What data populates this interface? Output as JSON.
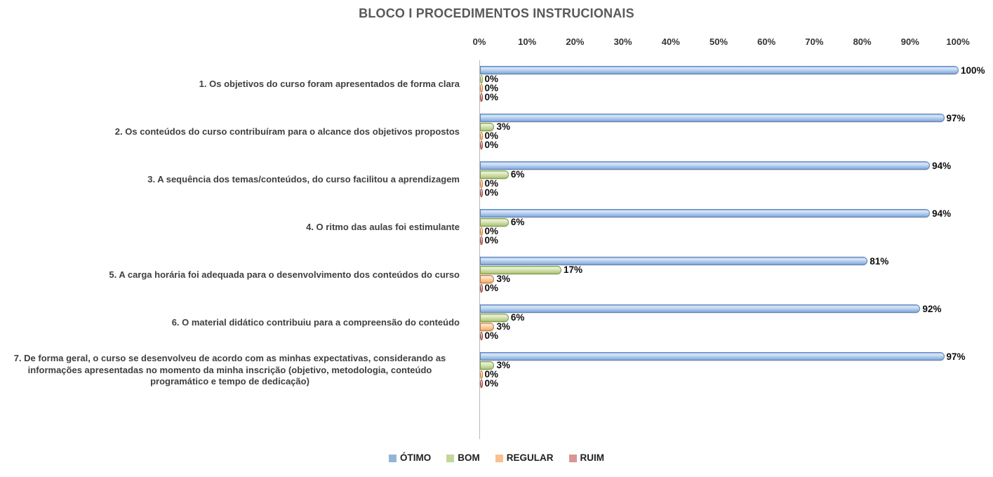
{
  "title": "BLOCO I PROCEDIMENTOS INSTRUCIONAIS",
  "colors": {
    "title_text": "#595959",
    "axis_line": "#b9b9b9",
    "category_text": "#3f3f3f",
    "otimo": "#95B3D7",
    "bom": "#C3D69B",
    "regular": "#FAC090",
    "ruim": "#D99694"
  },
  "chart_data": {
    "type": "bar",
    "orientation": "horizontal",
    "title": "BLOCO I PROCEDIMENTOS INSTRUCIONAIS",
    "categories": [
      "1. Os objetivos do curso foram apresentados de forma clara",
      "2. Os conteúdos do curso contribuíram para o alcance dos objetivos propostos",
      "3. A sequência dos temas/conteúdos, do curso facilitou a aprendizagem",
      "4. O ritmo das aulas foi estimulante",
      "5. A carga horária foi adequada para o desenvolvimento dos conteúdos do curso",
      "6. O material didático contribuiu para a compreensão do conteúdo",
      "7. De forma geral, o curso se desenvolveu de acordo com as minhas expectativas, considerando as informações apresentadas no momento da minha inscrição (objetivo, metodologia, conteúdo programático e tempo de dedicação)"
    ],
    "series": [
      {
        "name": "ÓTIMO",
        "color": "#95B3D7",
        "values": [
          100,
          97,
          94,
          94,
          81,
          92,
          97
        ],
        "data_labels": [
          "100%",
          "97%",
          "94%",
          "94%",
          "81%",
          "92%",
          "97%"
        ]
      },
      {
        "name": "BOM",
        "color": "#C3D69B",
        "values": [
          0,
          3,
          6,
          6,
          17,
          6,
          3
        ],
        "data_labels": [
          "0%",
          "3%",
          "6%",
          "6%",
          "17%",
          "6%",
          "3%"
        ]
      },
      {
        "name": "REGULAR",
        "color": "#FAC090",
        "values": [
          0,
          0,
          0,
          0,
          3,
          3,
          0
        ],
        "data_labels": [
          "0%",
          "0%",
          "0%",
          "0%",
          "3%",
          "3%",
          "0%"
        ]
      },
      {
        "name": "RUIM",
        "color": "#D99694",
        "values": [
          0,
          0,
          0,
          0,
          0,
          0,
          0
        ],
        "data_labels": [
          "0%",
          "0%",
          "0%",
          "0%",
          "0%",
          "0%",
          "0%"
        ]
      }
    ],
    "axis": {
      "min": 0,
      "max": 100,
      "step": 10,
      "tick_labels": [
        "0%",
        "10%",
        "20%",
        "30%",
        "40%",
        "50%",
        "60%",
        "70%",
        "80%",
        "90%",
        "100%"
      ]
    },
    "grid": false,
    "xlabel": "",
    "ylabel": "",
    "legend": {
      "position": "bottom",
      "entries": [
        "ÓTIMO",
        "BOM",
        "REGULAR",
        "RUIM"
      ]
    }
  }
}
